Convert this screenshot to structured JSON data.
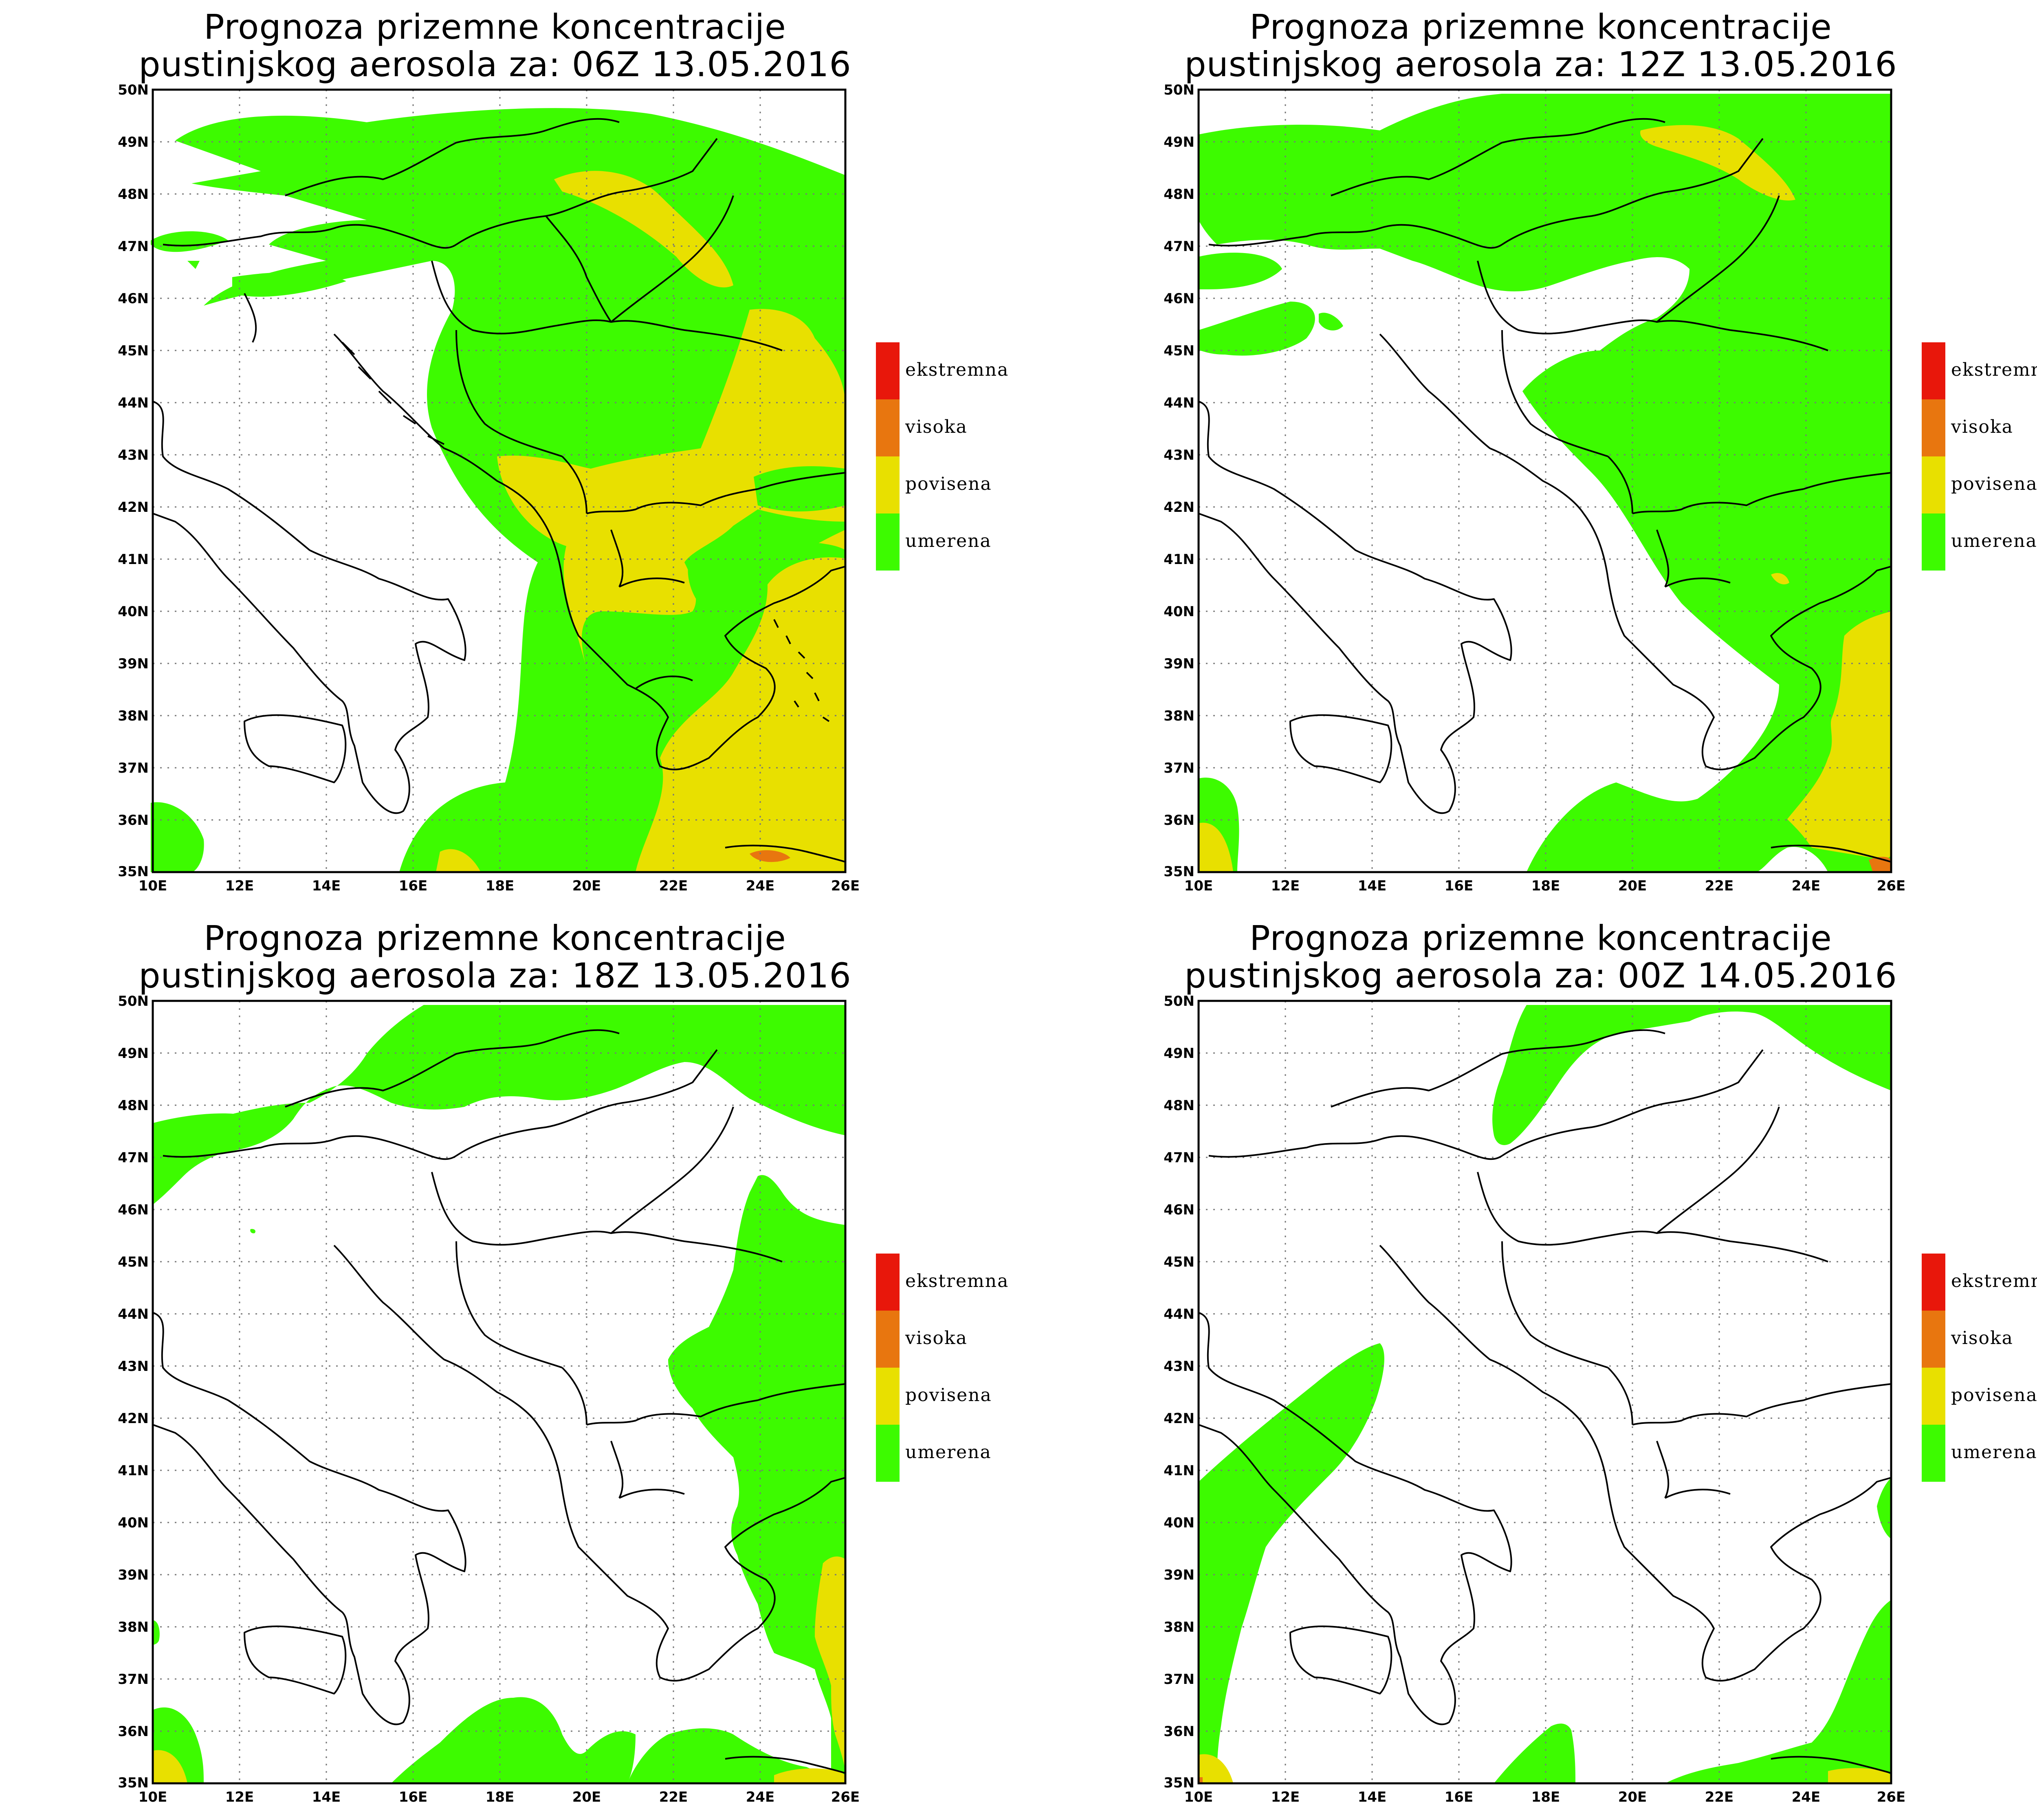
{
  "panels": [
    {
      "title_line1": "Prognoza prizemne koncentracije",
      "title_line2": "pustinjskog aerosola za: 06Z 13.05.2016"
    },
    {
      "title_line1": "Prognoza prizemne koncentracije",
      "title_line2": "pustinjskog aerosola za: 12Z 13.05.2016"
    },
    {
      "title_line1": "Prognoza prizemne koncentracije",
      "title_line2": "pustinjskog aerosola za: 18Z 13.05.2016"
    },
    {
      "title_line1": "Prognoza prizemne koncentracije",
      "title_line2": "pustinjskog aerosola za: 00Z 14.05.2016"
    }
  ],
  "axes": {
    "lat_labels": [
      "50N",
      "49N",
      "48N",
      "47N",
      "46N",
      "45N",
      "44N",
      "43N",
      "42N",
      "41N",
      "40N",
      "39N",
      "38N",
      "37N",
      "36N",
      "35N"
    ],
    "lon_labels": [
      "10E",
      "12E",
      "14E",
      "16E",
      "18E",
      "20E",
      "22E",
      "24E",
      "26E"
    ]
  },
  "legend": [
    {
      "label": "ekstremna",
      "color": "#e8170b"
    },
    {
      "label": "visoka",
      "color": "#e8760f"
    },
    {
      "label": "povisena",
      "color": "#e8e000"
    },
    {
      "label": "umerena",
      "color": "#3dfb00"
    }
  ],
  "colors": {
    "umerena": "#3dfb00",
    "povisena": "#e8e000",
    "visoka": "#e8760f",
    "ekstremna": "#e8170b"
  }
}
